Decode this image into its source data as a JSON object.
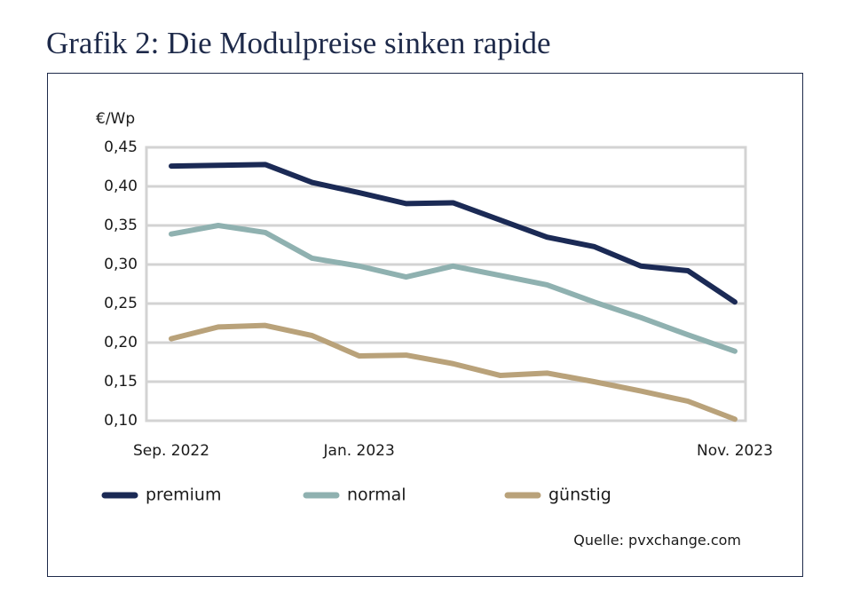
{
  "chart_data": {
    "type": "line",
    "title": "Grafik 2: Die Modulpreise sinken rapide",
    "y_label": "€/Wp",
    "source": "Quelle: pvxchange.com",
    "categories": [
      "Sep. 2022",
      null,
      null,
      null,
      "Jan. 2023",
      null,
      null,
      null,
      null,
      null,
      null,
      null,
      "Nov. 2023"
    ],
    "ylim": [
      0.1,
      0.45
    ],
    "yticks": [
      {
        "value": 0.1,
        "label": "0,10"
      },
      {
        "value": 0.15,
        "label": "0,15"
      },
      {
        "value": 0.2,
        "label": "0,20"
      },
      {
        "value": 0.25,
        "label": "0,25"
      },
      {
        "value": 0.3,
        "label": "0,30"
      },
      {
        "value": 0.35,
        "label": "0,35"
      },
      {
        "value": 0.4,
        "label": "0,40"
      },
      {
        "value": 0.45,
        "label": "0,45"
      }
    ],
    "grid": true,
    "legend": "bottom",
    "series": [
      {
        "name": "premium",
        "color": "#1b2a55",
        "values": [
          0.426,
          0.427,
          0.428,
          0.405,
          0.392,
          0.378,
          0.379,
          0.357,
          0.335,
          0.323,
          0.298,
          0.292,
          0.252
        ]
      },
      {
        "name": "normal",
        "color": "#8fb1b0",
        "values": [
          0.339,
          0.35,
          0.341,
          0.308,
          0.298,
          0.284,
          0.298,
          0.286,
          0.274,
          0.252,
          0.232,
          0.21,
          0.189
        ]
      },
      {
        "name": "günstig",
        "color": "#b9a27a",
        "values": [
          0.205,
          0.22,
          0.222,
          0.209,
          0.183,
          0.184,
          0.173,
          0.158,
          0.161,
          0.15,
          0.138,
          0.125,
          0.102
        ]
      }
    ]
  }
}
